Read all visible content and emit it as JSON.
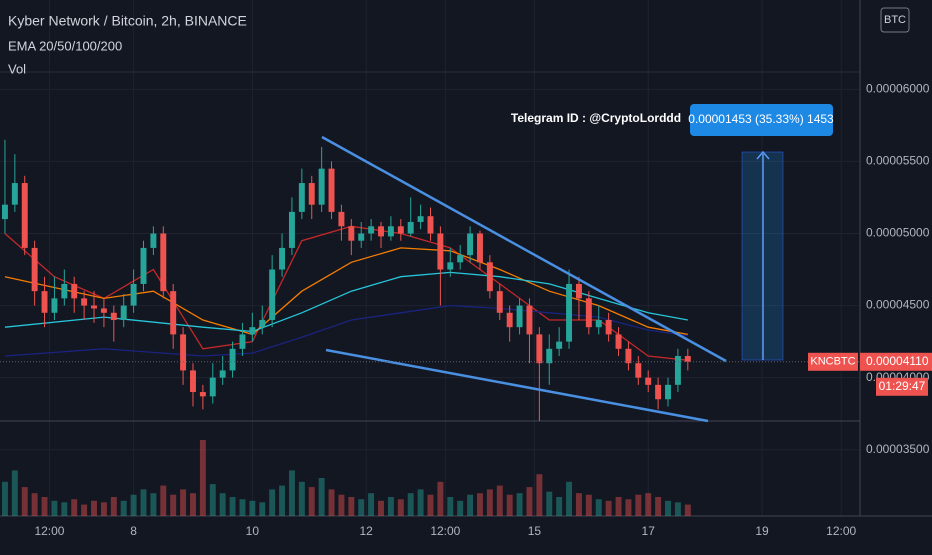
{
  "chart_data": {
    "type": "candlestick",
    "title": "Kyber Network / Bitcoin, 2h, BINANCE",
    "indicators": [
      "EMA 20/50/100/200",
      "Vol"
    ],
    "watermark": "Telegram ID : @CryptoLorddd",
    "position_label": "0.00001453 (35.33%) 1453",
    "currency_button": "BTC",
    "symbol": "KNCBTC",
    "countdown": "01:29:47",
    "current_price": {
      "value": 4.11e-05,
      "label": "0.00004110"
    },
    "up_color": "#26a69a",
    "down_color": "#ef5350",
    "xlim": [
      -0.5,
      86.4
    ],
    "xticks": [
      {
        "value": 4.5,
        "label": "12:00"
      },
      {
        "value": 13,
        "label": "8"
      },
      {
        "value": 25,
        "label": "10"
      },
      {
        "value": 36.5,
        "label": "12"
      },
      {
        "value": 44.5,
        "label": "12:00"
      },
      {
        "value": 53.5,
        "label": "15"
      },
      {
        "value": 65,
        "label": "17"
      },
      {
        "value": 76.5,
        "label": "19"
      },
      {
        "value": 84.5,
        "label": "12:00"
      }
    ],
    "ylim": [
      3.04e-05,
      6.62e-05
    ],
    "yticks": [
      {
        "value": 3.5e-05,
        "label": "0.00003500"
      },
      {
        "value": 4e-05,
        "label": "0.00004000"
      },
      {
        "value": 4.5e-05,
        "label": "0.00004500"
      },
      {
        "value": 5e-05,
        "label": "0.00005000"
      },
      {
        "value": 5.5e-05,
        "label": "0.00005500"
      },
      {
        "value": 6e-05,
        "label": "0.00006000"
      }
    ],
    "open": [
      5.1e-05,
      5.2e-05,
      5.35e-05,
      4.9e-05,
      4.6e-05,
      4.45e-05,
      4.55e-05,
      4.65e-05,
      4.55e-05,
      4.5e-05,
      4.48e-05,
      4.45e-05,
      4.4e-05,
      4.5e-05,
      4.65e-05,
      4.9e-05,
      5e-05,
      4.6e-05,
      4.3e-05,
      4.05e-05,
      3.9e-05,
      3.87e-05,
      4e-05,
      4.05e-05,
      4.2e-05,
      4.3e-05,
      4.35e-05,
      4.4e-05,
      4.75e-05,
      4.9e-05,
      5.15e-05,
      5.35e-05,
      5.2e-05,
      5.45e-05,
      5.15e-05,
      5.05e-05,
      4.95e-05,
      5e-05,
      5.05e-05,
      4.98e-05,
      5.05e-05,
      5e-05,
      5.08e-05,
      5.12e-05,
      5e-05,
      4.75e-05,
      4.8e-05,
      4.85e-05,
      5e-05,
      4.8e-05,
      4.6e-05,
      4.45e-05,
      4.35e-05,
      4.5e-05,
      4.3e-05,
      4.1e-05,
      4.2e-05,
      4.25e-05,
      4.65e-05,
      4.55e-05,
      4.35e-05,
      4.4e-05,
      4.3e-05,
      4.2e-05,
      4.1e-05,
      4e-05,
      3.95e-05,
      3.85e-05,
      3.95e-05,
      4.15e-05
    ],
    "high": [
      5.65e-05,
      5.55e-05,
      5.4e-05,
      4.95e-05,
      4.7e-05,
      4.7e-05,
      4.75e-05,
      4.7e-05,
      4.6e-05,
      4.6e-05,
      4.55e-05,
      4.5e-05,
      4.58e-05,
      4.75e-05,
      4.95e-05,
      5.05e-05,
      5.05e-05,
      4.65e-05,
      4.35e-05,
      4.1e-05,
      3.95e-05,
      4.1e-05,
      4.15e-05,
      4.25e-05,
      4.38e-05,
      4.45e-05,
      4.5e-05,
      4.85e-05,
      5e-05,
      5.25e-05,
      5.45e-05,
      5.4e-05,
      5.6e-05,
      5.5e-05,
      5.2e-05,
      5.1e-05,
      5.08e-05,
      5.1e-05,
      5.08e-05,
      5.12e-05,
      5.1e-05,
      5.25e-05,
      5.2e-05,
      5.18e-05,
      5.05e-05,
      4.9e-05,
      4.92e-05,
      5.05e-05,
      5.02e-05,
      4.85e-05,
      4.65e-05,
      4.5e-05,
      4.55e-05,
      4.55e-05,
      4.35e-05,
      4.3e-05,
      4.35e-05,
      4.75e-05,
      4.7e-05,
      4.6e-05,
      4.5e-05,
      4.45e-05,
      4.35e-05,
      4.25e-05,
      4.15e-05,
      4.05e-05,
      4e-05,
      4e-05,
      4.2e-05,
      4.2e-05
    ],
    "low": [
      5e-05,
      5.15e-05,
      4.85e-05,
      4.5e-05,
      4.35e-05,
      4.4e-05,
      4.5e-05,
      4.45e-05,
      4.4e-05,
      4.38e-05,
      4.35e-05,
      4.25e-05,
      4.35e-05,
      4.45e-05,
      4.6e-05,
      4.85e-05,
      4.55e-05,
      4.2e-05,
      3.95e-05,
      3.8e-05,
      3.78e-05,
      3.82e-05,
      3.95e-05,
      4e-05,
      4.15e-05,
      4.25e-05,
      4.3e-05,
      4.35e-05,
      4.7e-05,
      4.85e-05,
      5.1e-05,
      5.1e-05,
      5.15e-05,
      5.1e-05,
      4.95e-05,
      4.85e-05,
      4.9e-05,
      4.95e-05,
      4.9e-05,
      4.95e-05,
      4.95e-05,
      4.98e-05,
      5.03e-05,
      4.95e-05,
      4.5e-05,
      4.7e-05,
      4.75e-05,
      4.8e-05,
      4.75e-05,
      4.55e-05,
      4.4e-05,
      4.25e-05,
      4.3e-05,
      4.1e-05,
      3.7e-05,
      3.95e-05,
      4.15e-05,
      4.2e-05,
      4.4e-05,
      4.3e-05,
      4.3e-05,
      4.25e-05,
      4.15e-05,
      4.05e-05,
      3.95e-05,
      3.9e-05,
      3.78e-05,
      3.8e-05,
      3.9e-05,
      4.05e-05
    ],
    "close": [
      5.2e-05,
      5.35e-05,
      4.9e-05,
      4.6e-05,
      4.45e-05,
      4.55e-05,
      4.65e-05,
      4.55e-05,
      4.5e-05,
      4.48e-05,
      4.45e-05,
      4.4e-05,
      4.5e-05,
      4.65e-05,
      4.9e-05,
      5e-05,
      4.6e-05,
      4.3e-05,
      4.05e-05,
      3.9e-05,
      3.87e-05,
      4e-05,
      4.05e-05,
      4.2e-05,
      4.3e-05,
      4.35e-05,
      4.4e-05,
      4.75e-05,
      4.9e-05,
      5.15e-05,
      5.35e-05,
      5.2e-05,
      5.45e-05,
      5.15e-05,
      5.05e-05,
      4.95e-05,
      5e-05,
      5.05e-05,
      4.98e-05,
      5.05e-05,
      5e-05,
      5.08e-05,
      5.12e-05,
      5e-05,
      4.75e-05,
      4.8e-05,
      4.85e-05,
      5e-05,
      4.8e-05,
      4.6e-05,
      4.45e-05,
      4.35e-05,
      4.5e-05,
      4.3e-05,
      4.1e-05,
      4.2e-05,
      4.25e-05,
      4.65e-05,
      4.55e-05,
      4.35e-05,
      4.4e-05,
      4.3e-05,
      4.2e-05,
      4.1e-05,
      4e-05,
      3.95e-05,
      3.85e-05,
      3.95e-05,
      4.15e-05,
      4.11e-05
    ],
    "volume": [
      45,
      60,
      38,
      30,
      25,
      20,
      18,
      22,
      15,
      20,
      18,
      25,
      20,
      28,
      35,
      30,
      40,
      28,
      35,
      30,
      100,
      42,
      30,
      25,
      22,
      20,
      18,
      35,
      40,
      60,
      45,
      38,
      50,
      35,
      28,
      25,
      22,
      30,
      20,
      25,
      22,
      30,
      35,
      28,
      45,
      25,
      20,
      28,
      30,
      35,
      40,
      28,
      30,
      38,
      55,
      32,
      25,
      45,
      30,
      28,
      22,
      20,
      25,
      22,
      28,
      30,
      25,
      20,
      18,
      15
    ],
    "volume_ylim": [
      0,
      100
    ],
    "emas": [
      {
        "color": "#c62828",
        "x": [
          0,
          5,
          10,
          15,
          20,
          25,
          30,
          35,
          40,
          45,
          50,
          55,
          60,
          65,
          69
        ],
        "values": [
          5e-05,
          4.7e-05,
          4.55e-05,
          4.75e-05,
          4.2e-05,
          4.25e-05,
          4.95e-05,
          5.05e-05,
          5e-05,
          4.9e-05,
          4.65e-05,
          4.4e-05,
          4.4e-05,
          4.15e-05,
          4.12e-05
        ]
      },
      {
        "color": "#f57c00",
        "x": [
          0,
          10,
          15,
          20,
          25,
          30,
          35,
          40,
          45,
          50,
          55,
          60,
          65,
          69
        ],
        "values": [
          4.7e-05,
          4.55e-05,
          4.6e-05,
          4.4e-05,
          4.3e-05,
          4.6e-05,
          4.8e-05,
          4.9e-05,
          4.88e-05,
          4.75e-05,
          4.6e-05,
          4.5e-05,
          4.35e-05,
          4.3e-05
        ]
      },
      {
        "color": "#26c6da",
        "x": [
          0,
          10,
          20,
          25,
          30,
          35,
          40,
          45,
          50,
          55,
          60,
          65,
          69
        ],
        "values": [
          4.35e-05,
          4.42e-05,
          4.35e-05,
          4.32e-05,
          4.45e-05,
          4.6e-05,
          4.7e-05,
          4.73e-05,
          4.7e-05,
          4.65e-05,
          4.55e-05,
          4.45e-05,
          4.4e-05
        ]
      },
      {
        "color": "#1a237e",
        "x": [
          0,
          10,
          20,
          25,
          30,
          35,
          40,
          45,
          50,
          55,
          60,
          65,
          69
        ],
        "values": [
          4.15e-05,
          4.2e-05,
          4.15e-05,
          4.17e-05,
          4.28e-05,
          4.4e-05,
          4.45e-05,
          4.5e-05,
          4.48e-05,
          4.45e-05,
          4.42e-05,
          4.33e-05,
          4.29e-05
        ]
      }
    ]
  }
}
